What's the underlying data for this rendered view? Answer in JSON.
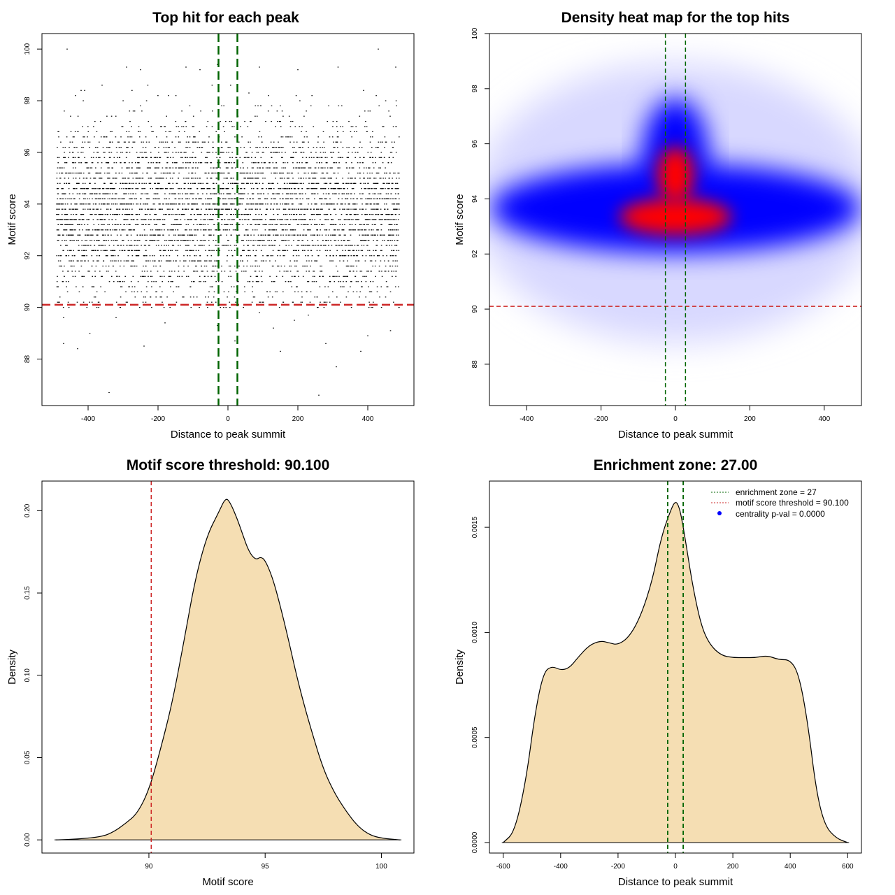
{
  "chart_data": [
    {
      "type": "scatter",
      "title": "Top hit for each peak",
      "xlabel": "Distance to peak summit",
      "ylabel": "Motif score",
      "xlim": [
        -532,
        532
      ],
      "ylim": [
        86.2,
        100.6
      ],
      "xticks": [
        -400,
        -200,
        0,
        200,
        400
      ],
      "yticks": [
        88,
        90,
        92,
        94,
        96,
        98,
        100
      ],
      "x_range": [
        -490,
        490
      ],
      "core_y_range": [
        90.5,
        97.5
      ],
      "outlier_points": [
        [
          -460,
          100.0
        ],
        [
          -290,
          99.3
        ],
        [
          -250,
          99.2
        ],
        [
          -120,
          99.3
        ],
        [
          -80,
          99.2
        ],
        [
          -30,
          99.4
        ],
        [
          90,
          99.3
        ],
        [
          200,
          99.2
        ],
        [
          315,
          99.3
        ],
        [
          430,
          100.0
        ],
        [
          480,
          99.3
        ],
        [
          -420,
          98.4
        ],
        [
          -360,
          98.6
        ],
        [
          60,
          98.3
        ],
        [
          -470,
          88.6
        ],
        [
          -395,
          89.0
        ],
        [
          -340,
          86.7
        ],
        [
          -240,
          88.5
        ],
        [
          -30,
          89.3
        ],
        [
          20,
          88.7
        ],
        [
          150,
          88.3
        ],
        [
          260,
          86.6
        ],
        [
          310,
          87.7
        ],
        [
          400,
          88.9
        ],
        [
          465,
          89.1
        ],
        [
          -470,
          89.6
        ],
        [
          -180,
          89.4
        ],
        [
          90,
          89.8
        ],
        [
          190,
          89.5
        ],
        [
          280,
          88.6
        ],
        [
          -430,
          88.4
        ],
        [
          380,
          88.3
        ],
        [
          -320,
          89.6
        ],
        [
          130,
          89.2
        ],
        [
          230,
          89.7
        ]
      ],
      "threshold_y": 90.1,
      "zone_x": [
        -27,
        27
      ]
    },
    {
      "type": "heatmap",
      "title": "Density heat map for the top hits",
      "xlabel": "Distance to peak summit",
      "ylabel": "Motif score",
      "xlim": [
        -500,
        500
      ],
      "ylim": [
        86.5,
        100.0
      ],
      "xticks": [
        -400,
        -200,
        0,
        200,
        400
      ],
      "yticks": [
        88,
        90,
        92,
        94,
        96,
        98,
        100
      ],
      "threshold_y": 90.1,
      "zone_x": [
        -27,
        27
      ],
      "colors": [
        "#ffffff",
        "#0000ff",
        "#ff0000"
      ]
    },
    {
      "type": "area",
      "title": "Motif score threshold: 90.100",
      "xlabel": "Motif score",
      "ylabel": "Density",
      "xlim": [
        85.4,
        101.4
      ],
      "ylim": [
        -0.008,
        0.218
      ],
      "xticks": [
        90,
        95,
        100
      ],
      "yticks": [
        0.0,
        0.05,
        0.1,
        0.15,
        0.2
      ],
      "ytick_labels": [
        "0.00",
        "0.05",
        "0.10",
        "0.15",
        "0.20"
      ],
      "x": [
        86.0,
        87.0,
        88.0,
        88.5,
        89.0,
        89.5,
        90.0,
        90.5,
        91.0,
        91.5,
        92.0,
        92.5,
        93.0,
        93.3,
        93.5,
        93.8,
        94.0,
        94.3,
        94.6,
        94.8,
        95.0,
        95.3,
        95.6,
        96.0,
        96.3,
        96.6,
        97.0,
        97.5,
        98.0,
        98.5,
        99.0,
        99.5,
        100.0,
        100.8
      ],
      "y": [
        0.0,
        0.0005,
        0.002,
        0.005,
        0.01,
        0.016,
        0.03,
        0.055,
        0.083,
        0.12,
        0.159,
        0.185,
        0.199,
        0.208,
        0.205,
        0.195,
        0.187,
        0.175,
        0.17,
        0.172,
        0.17,
        0.16,
        0.145,
        0.122,
        0.103,
        0.086,
        0.066,
        0.043,
        0.028,
        0.017,
        0.008,
        0.003,
        0.001,
        0.0
      ],
      "threshold_x": 90.1,
      "fill": "#f5deb3"
    },
    {
      "type": "area",
      "title": "Enrichment zone: 27.00",
      "xlabel": "Distance to peak summit",
      "ylabel": "Density",
      "xlim": [
        -648,
        648
      ],
      "ylim": [
        -5e-05,
        0.00172
      ],
      "xticks": [
        -600,
        -400,
        -200,
        0,
        200,
        400,
        600
      ],
      "yticks": [
        0.0,
        0.0005,
        0.001,
        0.0015
      ],
      "ytick_labels": [
        "0.0000",
        "0.0005",
        "0.0010",
        "0.0015"
      ],
      "x": [
        -600,
        -560,
        -520,
        -490,
        -460,
        -430,
        -400,
        -370,
        -340,
        -300,
        -260,
        -230,
        -200,
        -160,
        -120,
        -80,
        -50,
        -20,
        0,
        15,
        30,
        60,
        90,
        120,
        160,
        200,
        240,
        280,
        320,
        360,
        400,
        430,
        460,
        490,
        520,
        560,
        600
      ],
      "y": [
        0.0,
        5e-05,
        0.0003,
        0.00061,
        0.00081,
        0.00084,
        0.00082,
        0.00083,
        0.00088,
        0.00094,
        0.00096,
        0.00095,
        0.00094,
        0.00098,
        0.00108,
        0.00125,
        0.00145,
        0.00157,
        0.00163,
        0.00159,
        0.00148,
        0.00122,
        0.00103,
        0.00094,
        0.00089,
        0.00088,
        0.00088,
        0.00088,
        0.00089,
        0.00087,
        0.00087,
        0.0008,
        0.00058,
        0.00025,
        8e-05,
        2e-05,
        0.0
      ],
      "zone_x": [
        -27,
        27
      ],
      "fill": "#f5deb3",
      "legend": {
        "position": "top-right",
        "entries": [
          "enrichment zone = 27",
          "motif score threshold = 90.100",
          "centrality p-val = 0.0000"
        ]
      }
    }
  ],
  "colors": {
    "threshold": "#cd2626",
    "zone": "#006400",
    "points": "#000000",
    "legend_dot": "#0000ff"
  }
}
